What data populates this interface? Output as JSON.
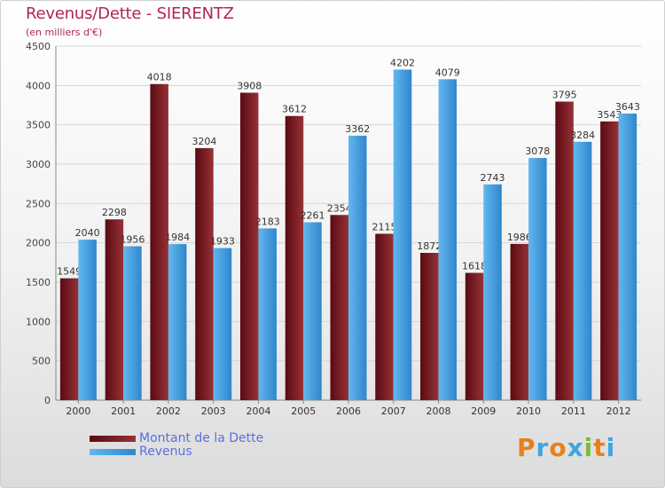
{
  "header": {
    "title": "Revenus/Dette - SIERENTZ",
    "subtitle": "(en milliers d'€)"
  },
  "logo": {
    "text": "Proxiti",
    "letter_colors": [
      "#e8801c",
      "#3ea6e3",
      "#e8801c",
      "#3ea6e3",
      "#7dbb35",
      "#e8801c",
      "#3ea6e3"
    ]
  },
  "colors": {
    "debt_dark": "#5a0a12",
    "debt_light": "#963237",
    "revenue_dark": "#2f86cc",
    "revenue_light": "#63b7ef"
  },
  "chart_data": {
    "type": "bar",
    "categories": [
      "2000",
      "2001",
      "2002",
      "2003",
      "2004",
      "2005",
      "2006",
      "2007",
      "2008",
      "2009",
      "2010",
      "2011",
      "2012"
    ],
    "series": [
      {
        "name": "Montant de la Dette",
        "values": [
          1549,
          2298,
          4018,
          3204,
          3908,
          3612,
          2354,
          2115,
          1872,
          1618,
          1986,
          3795,
          3543
        ]
      },
      {
        "name": "Revenus",
        "values": [
          2040,
          1956,
          1984,
          1933,
          2183,
          2261,
          3362,
          4202,
          4079,
          2743,
          3078,
          3284,
          3643
        ]
      }
    ],
    "data_labels": [
      [
        "1549",
        "2298",
        "4018",
        "3204",
        "3908",
        "3612",
        "2354",
        "2115",
        "1872",
        "1618",
        "1986",
        "3795",
        "3543"
      ],
      [
        "2040",
        "1956",
        "1984",
        "1933",
        "2183",
        "2261",
        "3362",
        "4202",
        "4079",
        "2743",
        "3078",
        "3284",
        "3643"
      ]
    ],
    "yticks": [
      "0",
      "500",
      "1000",
      "1500",
      "2000",
      "2500",
      "3000",
      "3500",
      "4000",
      "4500"
    ],
    "ylim": [
      0,
      4500
    ],
    "grid": true,
    "legend_position": "bottom-left"
  }
}
